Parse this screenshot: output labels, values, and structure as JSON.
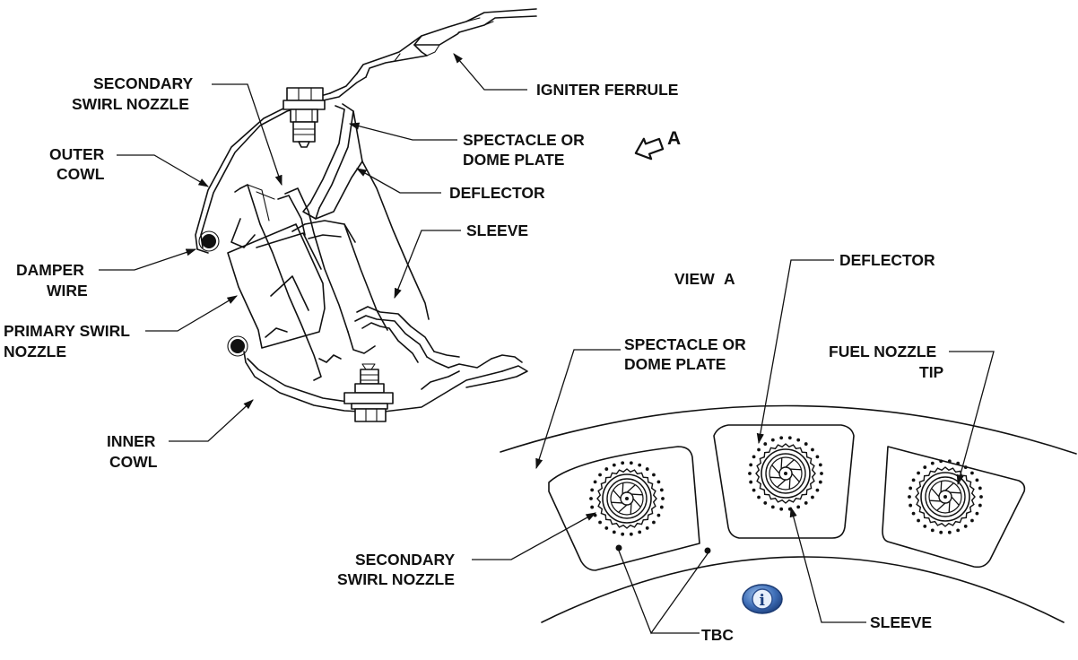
{
  "labels": {
    "igniter_ferrule": "IGNITER FERRULE",
    "secondary_swirl_nozzle_1": "SECONDARY",
    "secondary_swirl_nozzle_2": "SWIRL NOZZLE",
    "outer_cowl_1": "OUTER",
    "outer_cowl_2": "COWL",
    "spectacle_1": "SPECTACLE OR",
    "spectacle_2": "DOME PLATE",
    "deflector": "DEFLECTOR",
    "sleeve": "SLEEVE",
    "damper_wire_1": "DAMPER",
    "damper_wire_2": "WIRE",
    "primary_swirl_1": "PRIMARY SWIRL",
    "primary_swirl_2": "NOZZLE",
    "inner_cowl_1": "INNER",
    "inner_cowl_2": "COWL",
    "view_arrow": "A"
  },
  "view_a": {
    "title_word": "VIEW",
    "title_letter": "A",
    "deflector": "DEFLECTOR",
    "spectacle_1": "SPECTACLE OR",
    "spectacle_2": "DOME PLATE",
    "fuel_nozzle_tip_1": "FUEL NOZZLE",
    "fuel_nozzle_tip_2": "TIP",
    "secondary_swirl_1": "SECONDARY",
    "secondary_swirl_2": "SWIRL NOZZLE",
    "sleeve": "SLEEVE",
    "tbc": "TBC"
  },
  "info_icon": "info-icon"
}
